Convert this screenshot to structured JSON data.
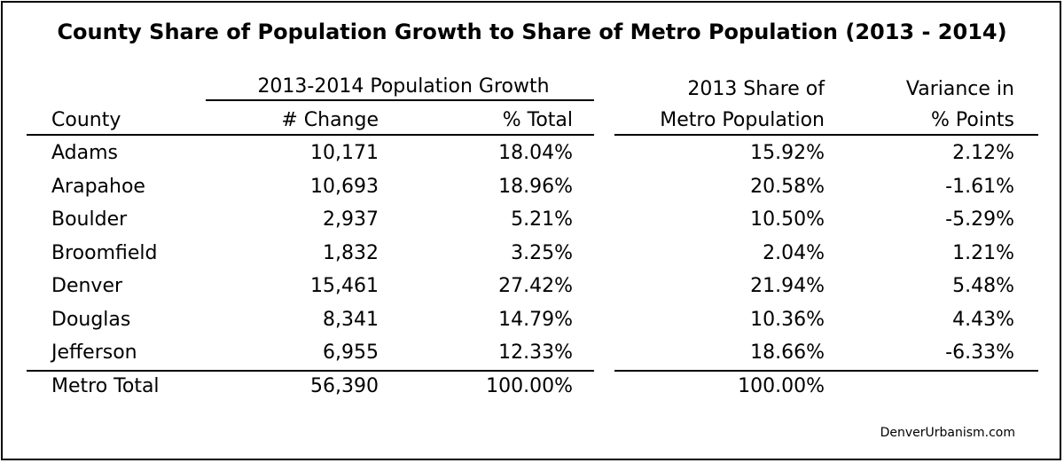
{
  "title": "County Share of Population Growth to Share of Metro Population (2013 - 2014)",
  "headers": {
    "group_growth": "2013-2014 Population Growth",
    "county": "County",
    "change": "# Change",
    "pct_total": "% Total",
    "share_line1": "2013 Share of",
    "share_line2": "Metro Population",
    "variance_line1": "Variance in",
    "variance_line2": "% Points"
  },
  "rows": [
    {
      "county": "Adams",
      "change": "10,171",
      "pct_total": "18.04%",
      "share": "15.92%",
      "variance": "2.12%"
    },
    {
      "county": "Arapahoe",
      "change": "10,693",
      "pct_total": "18.96%",
      "share": "20.58%",
      "variance": "-1.61%"
    },
    {
      "county": "Boulder",
      "change": "2,937",
      "pct_total": "5.21%",
      "share": "10.50%",
      "variance": "-5.29%"
    },
    {
      "county": "Broomfield",
      "change": "1,832",
      "pct_total": "3.25%",
      "share": "2.04%",
      "variance": "1.21%"
    },
    {
      "county": "Denver",
      "change": "15,461",
      "pct_total": "27.42%",
      "share": "21.94%",
      "variance": "5.48%"
    },
    {
      "county": "Douglas",
      "change": "8,341",
      "pct_total": "14.79%",
      "share": "10.36%",
      "variance": "4.43%"
    },
    {
      "county": "Jefferson",
      "change": "6,955",
      "pct_total": "12.33%",
      "share": "18.66%",
      "variance": "-6.33%"
    }
  ],
  "total": {
    "county": "Metro Total",
    "change": "56,390",
    "pct_total": "100.00%",
    "share": "100.00%",
    "variance": ""
  },
  "credit": "DenverUrbanism.com"
}
